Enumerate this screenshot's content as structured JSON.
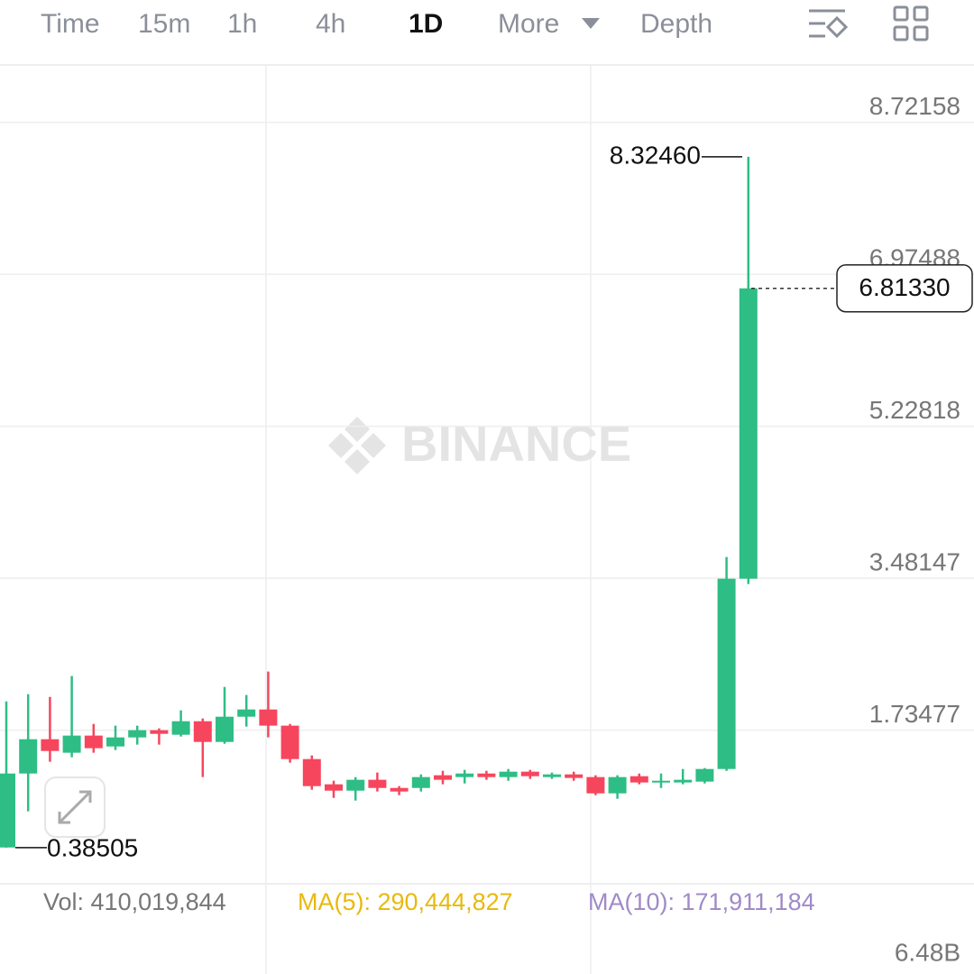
{
  "toolbar": {
    "tabs": [
      "Time",
      "15m",
      "1h",
      "4h",
      "1D",
      "More",
      "Depth"
    ]
  },
  "watermark": "BINANCE",
  "chart_data": {
    "type": "candlestick",
    "categories": [
      null,
      null,
      null,
      null,
      null,
      null,
      null,
      null,
      null,
      null,
      null,
      null,
      null,
      null,
      null,
      null,
      null,
      null,
      null,
      null,
      null,
      null,
      null,
      null,
      null,
      null,
      null,
      null,
      null,
      null,
      null,
      null,
      null,
      null,
      null
    ],
    "open": [
      0.387,
      1.237,
      1.631,
      1.476,
      1.673,
      1.548,
      1.652,
      1.735,
      1.683,
      1.838,
      1.6,
      1.89,
      1.973,
      1.787,
      1.403,
      1.113,
      1.04,
      1.165,
      1.071,
      1.071,
      1.217,
      1.196,
      1.237,
      1.196,
      1.258,
      1.196,
      1.227,
      1.196,
      1.009,
      1.206,
      1.134,
      1.134,
      1.144,
      1.289,
      3.476
    ],
    "high": [
      2.066,
      2.149,
      2.118,
      2.357,
      1.807,
      1.787,
      1.787,
      1.756,
      1.963,
      1.87,
      2.232,
      2.139,
      2.409,
      1.807,
      1.445,
      1.154,
      1.196,
      1.248,
      1.092,
      1.227,
      1.268,
      1.279,
      1.268,
      1.289,
      1.279,
      1.248,
      1.258,
      1.217,
      1.217,
      1.237,
      1.237,
      1.289,
      1.3,
      3.725,
      8.3246
    ],
    "low": [
      0.38505,
      0.802,
      1.372,
      1.424,
      1.476,
      1.507,
      1.569,
      1.569,
      1.662,
      1.196,
      1.579,
      1.776,
      1.652,
      1.362,
      1.051,
      0.957,
      0.926,
      1.03,
      0.988,
      1.03,
      1.113,
      1.123,
      1.165,
      1.154,
      1.175,
      1.175,
      1.154,
      0.988,
      0.947,
      1.113,
      1.071,
      1.113,
      1.123,
      1.268,
      3.414
    ],
    "close": [
      1.237,
      1.631,
      1.496,
      1.673,
      1.528,
      1.652,
      1.735,
      1.693,
      1.838,
      1.6,
      1.89,
      1.973,
      1.787,
      1.403,
      1.092,
      1.04,
      1.165,
      1.071,
      1.03,
      1.196,
      1.165,
      1.237,
      1.196,
      1.258,
      1.206,
      1.227,
      1.186,
      1.009,
      1.196,
      1.134,
      1.154,
      1.165,
      1.289,
      3.476,
      6.8133
    ],
    "up_color": "#2ebd85",
    "down_color": "#f6465d",
    "ylim": [
      -0.01,
      9.35
    ],
    "yticks": [
      1.73477,
      3.48147,
      5.22818,
      6.97488,
      8.72158
    ],
    "grid": true,
    "max_label": {
      "value": 8.3246,
      "label": "8.32460"
    },
    "min_label": 0.38505,
    "last_price": {
      "value": 6.8133,
      "label": "6.81330"
    }
  },
  "volume": {
    "vol": "Vol: 410,019,844",
    "ma5": "MA(5): 290,444,827",
    "ma10": "MA(10): 171,911,184",
    "axis_label": "6.48B"
  }
}
